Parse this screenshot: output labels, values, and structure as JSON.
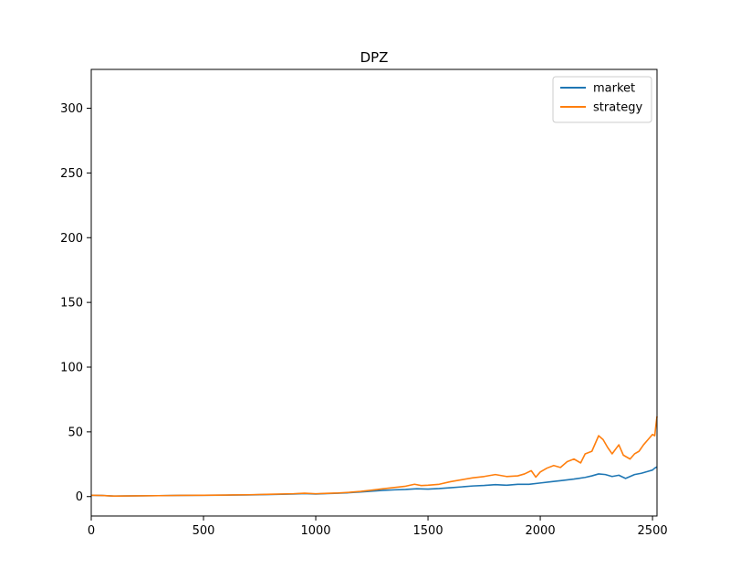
{
  "chart_data": {
    "type": "line",
    "title": "DPZ",
    "xlabel": "",
    "ylabel": "",
    "xlim": [
      0,
      2520
    ],
    "ylim": [
      -15,
      330
    ],
    "xticks": [
      0,
      500,
      1000,
      1500,
      2000,
      2500
    ],
    "yticks": [
      0,
      50,
      100,
      150,
      200,
      250,
      300
    ],
    "grid": false,
    "legend_position": "upper right",
    "series": [
      {
        "name": "market",
        "color": "#1f77b4",
        "x": [
          0,
          50,
          80,
          100,
          150,
          200,
          300,
          400,
          500,
          600,
          700,
          800,
          900,
          950,
          1000,
          1050,
          1100,
          1150,
          1200,
          1250,
          1300,
          1350,
          1400,
          1450,
          1500,
          1550,
          1600,
          1650,
          1700,
          1750,
          1800,
          1850,
          1900,
          1950,
          2000,
          2050,
          2100,
          2150,
          2200,
          2230,
          2260,
          2290,
          2320,
          2350,
          2380,
          2400,
          2420,
          2450,
          2480,
          2500,
          2510,
          2520
        ],
        "y": [
          1.0,
          0.8,
          0.6,
          0.4,
          0.5,
          0.6,
          0.7,
          0.9,
          1.0,
          1.1,
          1.3,
          1.6,
          2.0,
          2.3,
          2.0,
          2.3,
          2.6,
          3.0,
          3.6,
          4.2,
          4.8,
          5.2,
          5.5,
          6.0,
          5.8,
          6.2,
          6.8,
          7.5,
          8.2,
          8.6,
          9.2,
          8.8,
          9.5,
          9.5,
          10.5,
          11.5,
          12.5,
          13.5,
          14.8,
          16.0,
          17.5,
          17.0,
          15.5,
          16.5,
          14.0,
          15.5,
          17.0,
          18.0,
          19.5,
          20.5,
          22.0,
          23.0
        ]
      },
      {
        "name": "strategy",
        "color": "#ff7f0e",
        "x": [
          0,
          50,
          80,
          100,
          150,
          200,
          300,
          400,
          500,
          600,
          700,
          800,
          900,
          950,
          1000,
          1050,
          1100,
          1150,
          1200,
          1250,
          1300,
          1350,
          1400,
          1440,
          1470,
          1500,
          1550,
          1600,
          1650,
          1700,
          1750,
          1800,
          1850,
          1900,
          1930,
          1960,
          1980,
          2000,
          2030,
          2060,
          2090,
          2120,
          2150,
          2180,
          2200,
          2230,
          2260,
          2280,
          2300,
          2320,
          2350,
          2370,
          2400,
          2420,
          2440,
          2460,
          2480,
          2500,
          2510,
          2515,
          2520
        ],
        "y": [
          1.0,
          0.8,
          0.6,
          0.4,
          0.5,
          0.6,
          0.7,
          0.9,
          1.0,
          1.2,
          1.4,
          1.8,
          2.2,
          2.6,
          2.2,
          2.5,
          2.8,
          3.3,
          4.0,
          5.0,
          6.0,
          7.0,
          8.0,
          9.5,
          8.5,
          8.8,
          9.5,
          11.5,
          13.0,
          14.5,
          15.5,
          17.0,
          15.5,
          16.0,
          17.5,
          20.0,
          15.0,
          19.0,
          22.0,
          24.0,
          22.5,
          27.0,
          29.0,
          26.0,
          33.0,
          35.0,
          47.0,
          44.0,
          38.0,
          33.0,
          40.0,
          32.0,
          29.0,
          33.0,
          35.0,
          40.0,
          44.0,
          48.0,
          47.0,
          55.0,
          62.0
        ]
      }
    ]
  }
}
